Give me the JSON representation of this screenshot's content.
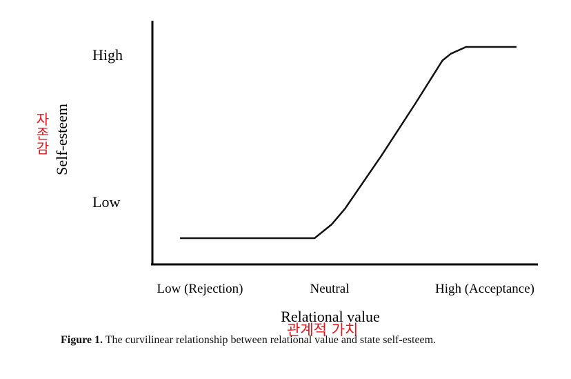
{
  "chart_data": {
    "type": "line",
    "xlabel": "Relational value",
    "ylabel": "Self-esteem",
    "xlabel_annotation": "관계적 가치",
    "ylabel_annotation": "자존감",
    "x_ticks": [
      "Low (Rejection)",
      "Neutral",
      "High (Acceptance)"
    ],
    "y_ticks": [
      "Low",
      "High"
    ],
    "xlim": [
      0,
      100
    ],
    "ylim": [
      0,
      100
    ],
    "series": [
      {
        "x": [
          0,
          40,
          45,
          49,
          60,
          70,
          78,
          80.5,
          85,
          100
        ],
        "y": [
          13,
          13,
          19,
          26,
          50,
          73,
          92,
          95,
          98,
          98
        ]
      }
    ],
    "grid": false,
    "legend": "none"
  },
  "caption": {
    "label": "Figure 1.",
    "text": "The curvilinear relationship between relational value and state self-esteem."
  },
  "colors": {
    "line": "#111111",
    "annotation": "#e8141b"
  }
}
